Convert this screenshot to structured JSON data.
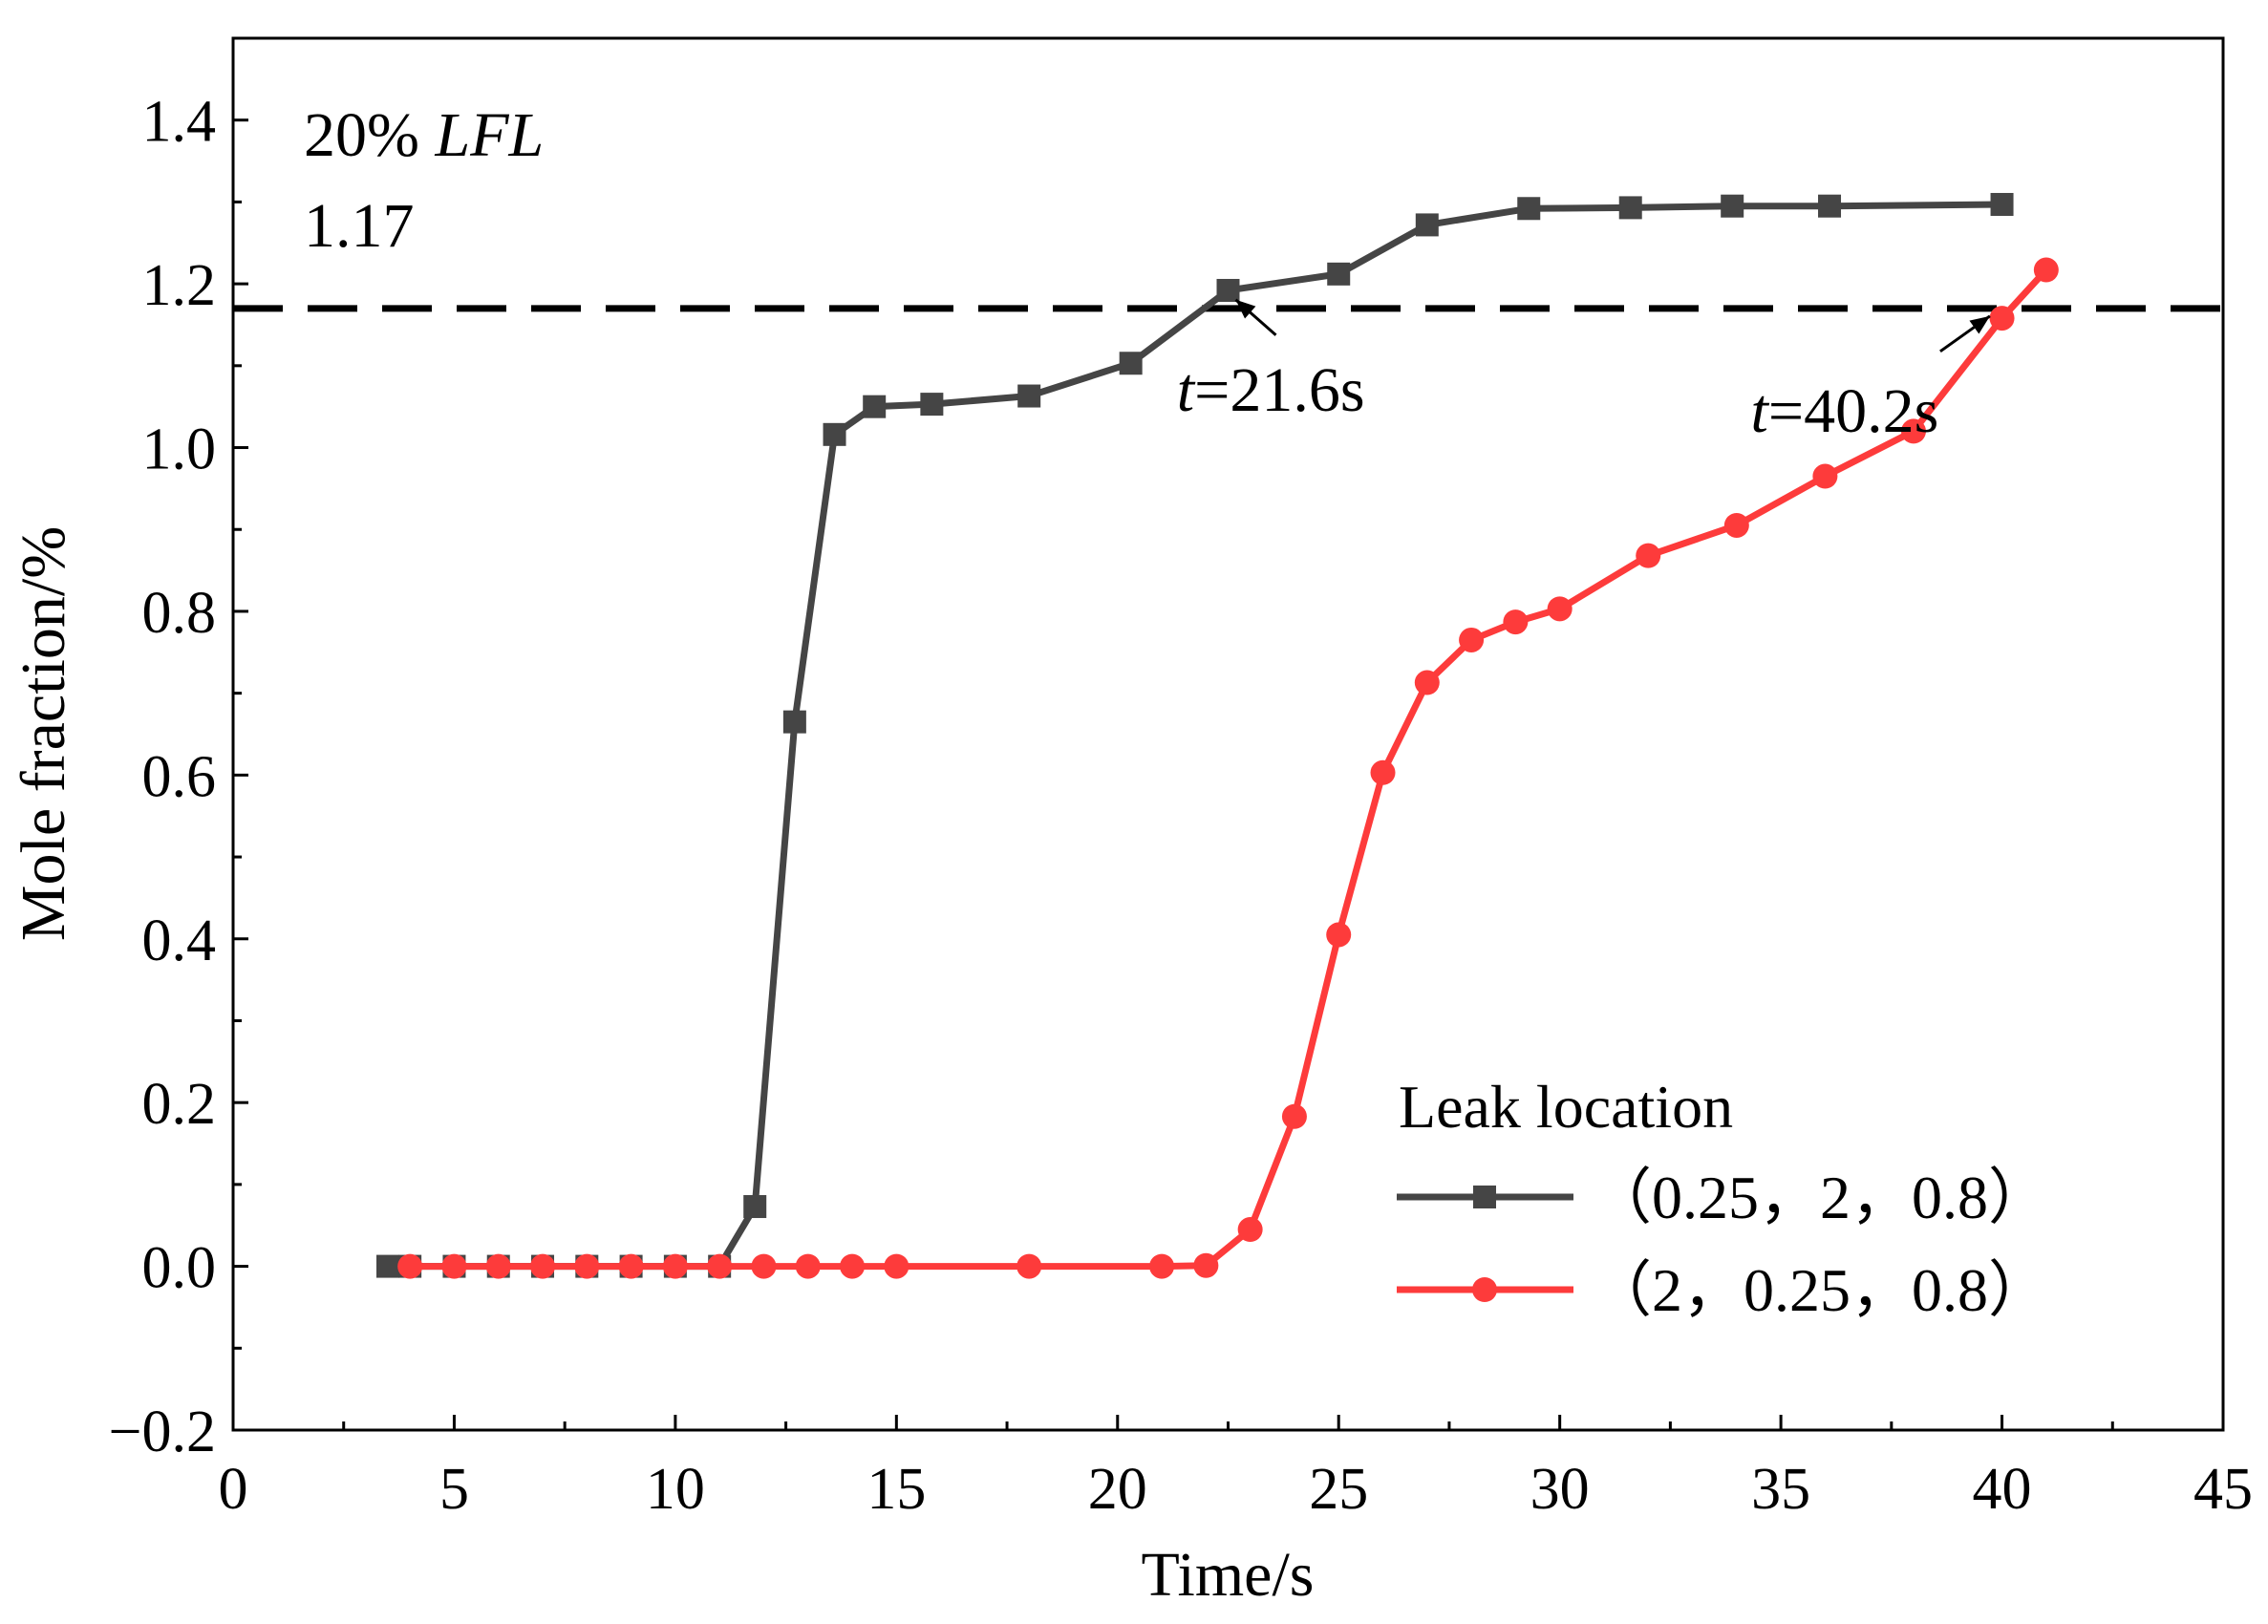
{
  "chart_data": {
    "type": "line",
    "xlabel": "Time/s",
    "ylabel": "Mole fraction/%",
    "xlim": [
      0,
      45
    ],
    "ylim": [
      -0.2,
      1.5
    ],
    "xticks": [
      0,
      5,
      10,
      15,
      20,
      25,
      30,
      35,
      40,
      45
    ],
    "xtick_labels": [
      "0",
      "5",
      "10",
      "15",
      "20",
      "25",
      "30",
      "35",
      "40",
      "45"
    ],
    "yticks": [
      -0.2,
      0.0,
      0.2,
      0.4,
      0.6,
      0.8,
      1.0,
      1.2,
      1.4
    ],
    "ytick_labels": [
      "−0.2",
      "0.0",
      "0.2",
      "0.4",
      "0.6",
      "0.8",
      "1.0",
      "1.2",
      "1.4"
    ],
    "grid": false,
    "threshold": {
      "value": 1.17,
      "style": "dashed",
      "color": "#000000"
    },
    "threshold_label_line1_prefix": "20% ",
    "threshold_label_line1_italic": "LFL",
    "threshold_label_line2": "1.17",
    "annotations": [
      {
        "var": "t",
        "text": "=21.6s",
        "target_x": 22.5,
        "target_y": 1.19,
        "label_x": 23.5,
        "label_y": 1.08
      },
      {
        "var": "t",
        "text": "=40.2s",
        "target_x": 39.9,
        "target_y": 1.17,
        "label_x": 39.0,
        "label_y": 1.13
      }
    ],
    "legend": {
      "title": "Leak location",
      "placement": "lower-right"
    },
    "series": [
      {
        "name": "（0.25，2，0.8）",
        "color": "#454545",
        "marker": "square",
        "x": [
          3.5,
          4.0,
          5.0,
          6.0,
          7.0,
          8.0,
          9.0,
          10.0,
          11.0,
          11.8,
          12.7,
          13.6,
          14.5,
          15.8,
          18.0,
          20.3,
          22.5,
          25.0,
          27.0,
          29.3,
          31.6,
          33.9,
          36.1,
          40.0
        ],
        "values": [
          0.0,
          0.0,
          0.0,
          0.0,
          0.0,
          0.0,
          0.0,
          0.0,
          0.0,
          0.073,
          0.665,
          1.016,
          1.05,
          1.053,
          1.063,
          1.103,
          1.192,
          1.212,
          1.272,
          1.292,
          1.293,
          1.295,
          1.295,
          1.297
        ]
      },
      {
        "name": "（2，0.25，0.8）",
        "color": "#fd3b3b",
        "marker": "circle",
        "x": [
          4,
          5,
          6,
          7,
          8,
          9,
          10,
          11,
          12,
          13,
          14,
          15,
          18,
          21,
          22,
          23,
          24,
          25,
          26,
          27,
          28,
          29,
          30,
          32,
          34,
          36,
          38,
          40,
          41
        ],
        "values": [
          0.0,
          0.0,
          0.0,
          0.0,
          0.0,
          0.0,
          0.0,
          0.0,
          0.0,
          0.0,
          0.0,
          0.0,
          0.0,
          0.0,
          0.001,
          0.045,
          0.183,
          0.405,
          0.603,
          0.713,
          0.765,
          0.787,
          0.803,
          0.868,
          0.905,
          0.965,
          1.02,
          1.158,
          1.217
        ]
      }
    ]
  }
}
